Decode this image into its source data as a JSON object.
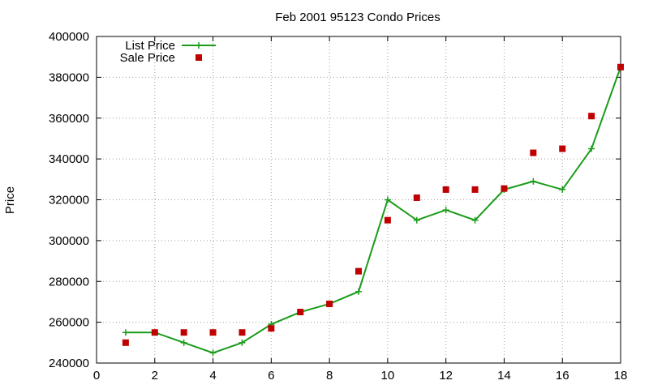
{
  "chart_data": {
    "type": "line",
    "title": "Feb 2001 95123 Condo Prices",
    "xlabel": "",
    "ylabel": "Price",
    "xlim": [
      0,
      18
    ],
    "ylim": [
      240000,
      400000
    ],
    "xticks": [
      "0",
      "2",
      "4",
      "6",
      "8",
      "10",
      "12",
      "14",
      "16",
      "18"
    ],
    "yticks": [
      "240000",
      "260000",
      "280000",
      "300000",
      "320000",
      "340000",
      "360000",
      "380000",
      "400000"
    ],
    "grid": true,
    "legend_position": "top-left",
    "series": [
      {
        "name": "List Price",
        "style": "line+crosses",
        "color": "#1a9c1a",
        "x": [
          1,
          2,
          3,
          4,
          5,
          6,
          7,
          8,
          9,
          10,
          11,
          12,
          13,
          14,
          15,
          16,
          17,
          18
        ],
        "y": [
          255000,
          255000,
          250000,
          245000,
          250000,
          259000,
          265000,
          269000,
          275000,
          320000,
          310000,
          315000,
          310000,
          325000,
          329000,
          325000,
          345000,
          385000
        ]
      },
      {
        "name": "Sale Price",
        "style": "squares",
        "color": "#c00000",
        "x": [
          1,
          2,
          3,
          4,
          5,
          6,
          7,
          8,
          9,
          10,
          11,
          12,
          13,
          14,
          15,
          16,
          17,
          18
        ],
        "y": [
          250000,
          255000,
          255000,
          255000,
          255000,
          257000,
          265000,
          269000,
          285000,
          310000,
          321000,
          325000,
          325000,
          325500,
          343000,
          345000,
          361000,
          385000
        ]
      }
    ]
  }
}
